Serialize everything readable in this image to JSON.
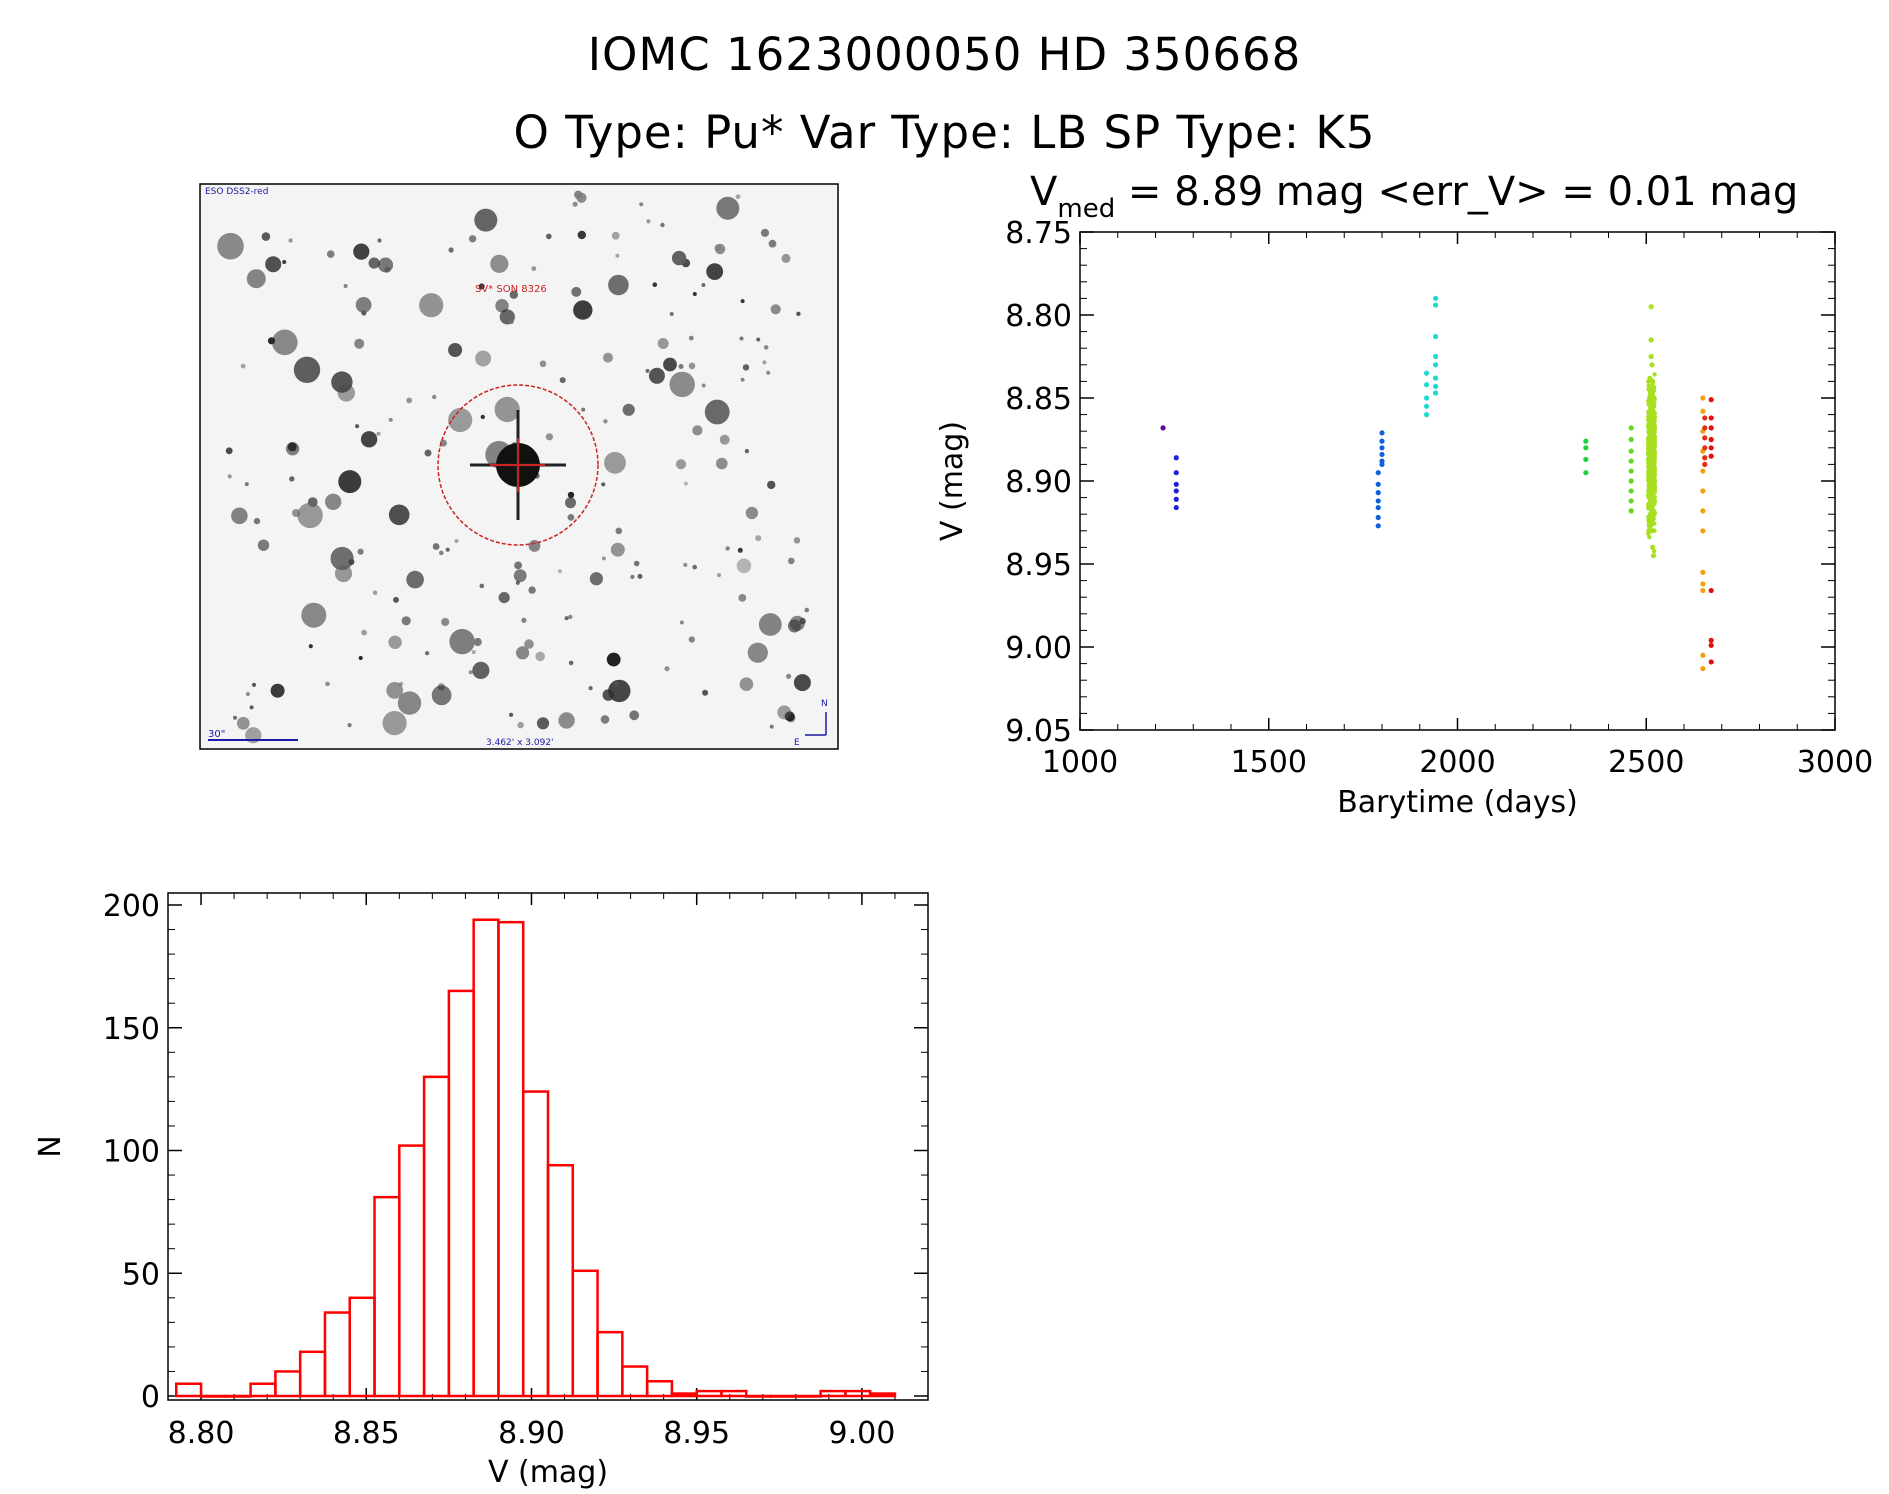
{
  "header": {
    "title": "IOMC 1623000050    HD 350668",
    "subtitle": "O Type: Pu*   Var Type: LB   SP Type: K5"
  },
  "image_panel": {
    "top_left_label": "ESO DSS2-red",
    "target_label": "SV* SON 8326",
    "scale_label": "30\"",
    "size_label": "3.462' x 3.092'",
    "north_label": "N",
    "east_label": "E",
    "label_color": "#1a1aa6",
    "target_color": "#cc2222"
  },
  "chart_data": [
    {
      "type": "scatter",
      "title_main": "V",
      "title_sub": "med",
      "title_rest": " = 8.89 mag <err_V> = 0.01 mag",
      "xlabel": "Barytime (days)",
      "ylabel": "V (mag)",
      "xlim": [
        1000,
        3000
      ],
      "ylim": [
        9.05,
        8.75
      ],
      "x_ticks": [
        "1000",
        "1500",
        "2000",
        "2500",
        "3000"
      ],
      "y_ticks": [
        "8.75",
        "8.80",
        "8.85",
        "8.90",
        "8.95",
        "9.00",
        "9.05"
      ],
      "series": [
        {
          "color": "#5a0aa0",
          "points": [
            [
              1220,
              8.868
            ]
          ]
        },
        {
          "color": "#2020d8",
          "points": [
            [
              1255,
              8.886
            ],
            [
              1255,
              8.895
            ],
            [
              1255,
              8.902
            ],
            [
              1255,
              8.906
            ],
            [
              1255,
              8.911
            ],
            [
              1255,
              8.916
            ]
          ]
        },
        {
          "color": "#1060d8",
          "points": [
            [
              1790,
              8.895
            ],
            [
              1790,
              8.902
            ],
            [
              1790,
              8.907
            ],
            [
              1790,
              8.912
            ],
            [
              1790,
              8.916
            ],
            [
              1790,
              8.922
            ],
            [
              1790,
              8.927
            ],
            [
              1800,
              8.871
            ],
            [
              1800,
              8.876
            ],
            [
              1800,
              8.88
            ],
            [
              1800,
              8.884
            ],
            [
              1800,
              8.888
            ],
            [
              1800,
              8.89
            ]
          ]
        },
        {
          "color": "#20d8d0",
          "points": [
            [
              1918,
              8.835
            ],
            [
              1918,
              8.842
            ],
            [
              1918,
              8.85
            ],
            [
              1918,
              8.855
            ],
            [
              1918,
              8.86
            ],
            [
              1942,
              8.79
            ],
            [
              1942,
              8.794
            ],
            [
              1942,
              8.813
            ],
            [
              1942,
              8.825
            ],
            [
              1942,
              8.83
            ],
            [
              1942,
              8.838
            ],
            [
              1942,
              8.843
            ],
            [
              1942,
              8.847
            ]
          ]
        },
        {
          "color": "#20d040",
          "points": [
            [
              2340,
              8.876
            ],
            [
              2340,
              8.88
            ],
            [
              2340,
              8.887
            ],
            [
              2340,
              8.895
            ]
          ]
        },
        {
          "color": "#60d820",
          "points": [
            [
              2460,
              8.868
            ],
            [
              2460,
              8.875
            ],
            [
              2460,
              8.882
            ],
            [
              2460,
              8.888
            ],
            [
              2460,
              8.894
            ],
            [
              2460,
              8.9
            ],
            [
              2460,
              8.906
            ],
            [
              2460,
              8.912
            ],
            [
              2460,
              8.918
            ]
          ]
        },
        {
          "color": "#a6e020",
          "points": [
            [
              2513,
              8.795
            ],
            [
              2513,
              8.815
            ],
            [
              2513,
              8.825
            ],
            [
              2515,
              8.83
            ],
            [
              2517,
              8.84
            ],
            [
              2519,
              8.85
            ],
            [
              2511,
              8.86
            ],
            [
              2513,
              8.87
            ],
            [
              2515,
              8.88
            ],
            [
              2517,
              8.89
            ],
            [
              2519,
              8.9
            ],
            [
              2511,
              8.91
            ],
            [
              2513,
              8.92
            ],
            [
              2515,
              8.93
            ],
            [
              2517,
              8.94
            ],
            [
              2519,
              8.945
            ]
          ]
        },
        {
          "color": "#f0a010",
          "points": [
            [
              2650,
              8.85
            ],
            [
              2650,
              8.858
            ],
            [
              2650,
              8.87
            ],
            [
              2650,
              8.882
            ],
            [
              2650,
              8.894
            ],
            [
              2650,
              8.906
            ],
            [
              2650,
              8.918
            ],
            [
              2650,
              8.93
            ],
            [
              2650,
              8.955
            ],
            [
              2650,
              8.962
            ],
            [
              2650,
              8.966
            ],
            [
              2650,
              9.005
            ],
            [
              2650,
              9.013
            ]
          ]
        },
        {
          "color": "#e03010",
          "points": [
            [
              2655,
              8.862
            ],
            [
              2655,
              8.868
            ],
            [
              2655,
              8.874
            ],
            [
              2655,
              8.88
            ],
            [
              2655,
              8.886
            ],
            [
              2655,
              8.89
            ]
          ]
        },
        {
          "color": "#e01010",
          "points": [
            [
              2672,
              8.851
            ],
            [
              2672,
              8.862
            ],
            [
              2672,
              8.868
            ],
            [
              2672,
              8.875
            ],
            [
              2672,
              8.88
            ],
            [
              2672,
              8.885
            ],
            [
              2672,
              8.966
            ],
            [
              2672,
              8.996
            ],
            [
              2672,
              8.999
            ],
            [
              2672,
              9.009
            ]
          ]
        }
      ],
      "dense_band": {
        "x_range": [
          2505,
          2523
        ],
        "y_range": [
          8.825,
          8.945
        ],
        "count": 700
      }
    },
    {
      "type": "bar",
      "xlabel": "V (mag)",
      "ylabel": "N",
      "xlim": [
        8.79,
        9.02
      ],
      "ylim": [
        0,
        200
      ],
      "x_ticks": [
        "8.80",
        "8.85",
        "8.90",
        "8.95",
        "9.00"
      ],
      "y_ticks": [
        "0",
        "50",
        "100",
        "150",
        "200"
      ],
      "bin_width": 0.0075,
      "bin_start": 8.7925,
      "values": [
        5,
        0,
        0,
        5,
        10,
        18,
        34,
        40,
        81,
        102,
        130,
        165,
        194,
        193,
        124,
        94,
        51,
        26,
        12,
        6,
        1,
        2,
        2,
        0,
        0,
        0,
        2,
        2,
        1
      ],
      "color": "#ff0000"
    }
  ]
}
